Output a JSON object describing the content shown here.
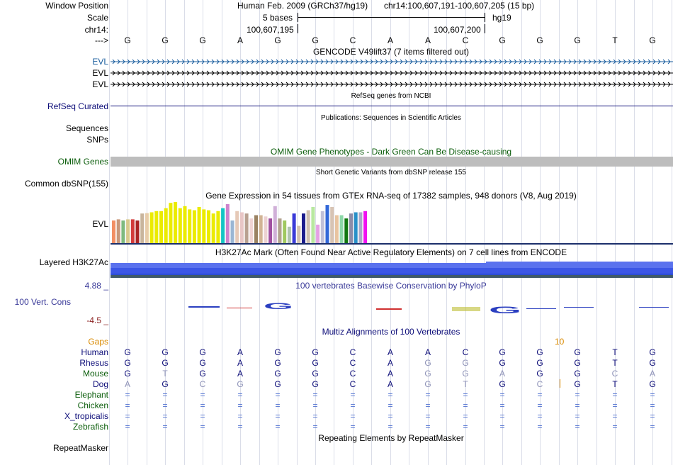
{
  "header": {
    "window_position_label": "Window Position",
    "scale_label": "Scale",
    "chrom_label": "chr14:",
    "arrow_label": "--->",
    "assembly_title": "Human Feb. 2009 (GRCh37/hg19)",
    "position_text": "chr14:100,607,191-100,607,205 (15 bp)",
    "scale_text": "5 bases",
    "db_text": "hg19",
    "coord_left": "100,607,195",
    "coord_right": "100,607,200"
  },
  "sequence": [
    "G",
    "G",
    "G",
    "A",
    "G",
    "G",
    "C",
    "A",
    "A",
    "C",
    "G",
    "G",
    "G",
    "T",
    "G"
  ],
  "tracks": {
    "gencode": {
      "title": "GENCODE V49lift37 (7 items filtered out)",
      "labels": [
        "EVL",
        "EVL",
        "EVL"
      ],
      "color": "#1a5d9e"
    },
    "refseq": {
      "title": "RefSeq genes from NCBI",
      "label": "RefSeq Curated",
      "color": "#0c0c78"
    },
    "publications": {
      "title": "Publications: Sequences in Scientific Articles",
      "labels": [
        "Sequences",
        "SNPs"
      ]
    },
    "omim": {
      "title": "OMIM Gene Phenotypes - Dark Green Can Be Disease-causing",
      "label": "OMIM Genes",
      "color": "#0b5d0b"
    },
    "dbsnp": {
      "title": "Short Genetic Variants from dbSNP release 155",
      "label": "Common dbSNP(155)"
    },
    "gtex": {
      "title": "Gene Expression in 54 tissues from GTEx RNA-seq of 17382 samples, 948 donors (V8, Aug 2019)",
      "label": "EVL",
      "values": [
        0.55,
        0.58,
        0.55,
        0.58,
        0.58,
        0.55,
        0.72,
        0.73,
        0.75,
        0.78,
        0.78,
        0.85,
        0.98,
        1.0,
        0.85,
        0.9,
        0.82,
        0.8,
        0.88,
        0.82,
        0.8,
        0.72,
        0.78,
        0.85,
        0.95,
        0.55,
        0.78,
        0.75,
        0.72,
        0.6,
        0.68,
        0.68,
        0.65,
        0.6,
        0.9,
        0.6,
        0.55,
        0.4,
        0.72,
        0.42,
        0.72,
        0.8,
        0.88,
        0.45,
        0.78,
        0.93,
        0.88,
        0.68,
        0.68,
        0.6,
        0.72,
        0.75,
        0.75,
        0.78
      ],
      "colors": [
        "#f28f63",
        "#c8977a",
        "#7fba7f",
        "#d9c98c",
        "#d33a3a",
        "#aa2323",
        "#c9b59c",
        "#e8cca8",
        "#ebeb00",
        "#ebeb00",
        "#ebeb00",
        "#ebeb00",
        "#ebeb00",
        "#ebeb00",
        "#ebeb00",
        "#ebeb00",
        "#ebeb00",
        "#ebeb00",
        "#ebeb00",
        "#ebeb00",
        "#ebeb00",
        "#ebeb00",
        "#ebeb00",
        "#12c5c5",
        "#cd82cd",
        "#9ab6d4",
        "#e6c9b7",
        "#e8c6c6",
        "#b8a090",
        "#f0d4d4",
        "#9a8262",
        "#d1b394",
        "#ecd2d2",
        "#a050a0",
        "#d0b0d8",
        "#b2a38d",
        "#a0c860",
        "#b0c4b0",
        "#3a3ad8",
        "#d4c2b2",
        "#1c1c8c",
        "#d0c0b0",
        "#b8e8a0",
        "#e4a0e4",
        "#c0c0d8",
        "#3268d8",
        "#d8c4b4",
        "#e8c4a0",
        "#8cd8a8",
        "#107810",
        "#8c8ca8",
        "#2890c8",
        "#a8a8c8",
        "#f010f0"
      ]
    },
    "h3k27ac": {
      "title": "H3K27Ac Mark (Often Found Near Active Regulatory Elements) on 7 cell lines from ENCODE",
      "label": "Layered H3K27Ac"
    },
    "conservation": {
      "title": "100 vertebrates Basewise Conservation by PhyloP",
      "label": "100 Vert. Cons",
      "max_label": "4.88 _",
      "min_label": "-4.5 _"
    },
    "multiz": {
      "title": "Multiz Alignments of 100 Vertebrates",
      "gaps_label": "Gaps",
      "gap_number": "10",
      "species": [
        {
          "name": "Human",
          "color": "#0c0c78",
          "bases": [
            "G",
            "G",
            "G",
            "A",
            "G",
            "G",
            "C",
            "A",
            "A",
            "C",
            "G",
            "G",
            "G",
            "T",
            "G"
          ]
        },
        {
          "name": "Rhesus",
          "color": "#0c0c78",
          "bases": [
            "G",
            "G",
            "G",
            "A",
            "G",
            "G",
            "C",
            "A",
            "G",
            "G",
            "G",
            "G",
            "G",
            "T",
            "G"
          ]
        },
        {
          "name": "Mouse",
          "color": "#0b5d0b",
          "bases": [
            "G",
            "T",
            "G",
            "A",
            "G",
            "G",
            "C",
            "A",
            "G",
            "G",
            "A",
            "G",
            "G",
            "C",
            "A"
          ]
        },
        {
          "name": "Dog",
          "color": "#0c0c78",
          "bases": [
            "A",
            "G",
            "C",
            "G",
            "G",
            "G",
            "C",
            "A",
            "G",
            "T",
            "G",
            "C",
            "G",
            "T",
            "G"
          ]
        },
        {
          "name": "Elephant",
          "color": "#0b5d0b",
          "bases": [
            "=",
            "=",
            "=",
            "=",
            "=",
            "=",
            "=",
            "=",
            "=",
            "=",
            "=",
            "=",
            "=",
            "=",
            "="
          ]
        },
        {
          "name": "Chicken",
          "color": "#0b5d0b",
          "bases": [
            "=",
            "=",
            "=",
            "=",
            "=",
            "=",
            "=",
            "=",
            "=",
            "=",
            "=",
            "=",
            "=",
            "=",
            "="
          ]
        },
        {
          "name": "X_tropicalis",
          "color": "#0c0c78",
          "bases": [
            "=",
            "=",
            "=",
            "=",
            "=",
            "=",
            "=",
            "=",
            "=",
            "=",
            "=",
            "=",
            "=",
            "=",
            "="
          ]
        },
        {
          "name": "Zebrafish",
          "color": "#0b5d0b",
          "bases": [
            "=",
            "=",
            "=",
            "=",
            "=",
            "=",
            "=",
            "=",
            "=",
            "=",
            "=",
            "=",
            "=",
            "=",
            "="
          ]
        }
      ]
    },
    "repeatmasker": {
      "title": "Repeating Elements by RepeatMasker",
      "label": "RepeatMasker"
    }
  }
}
